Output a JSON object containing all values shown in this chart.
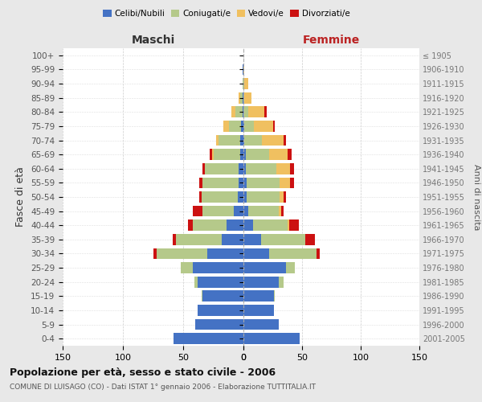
{
  "age_groups": [
    "0-4",
    "5-9",
    "10-14",
    "15-19",
    "20-24",
    "25-29",
    "30-34",
    "35-39",
    "40-44",
    "45-49",
    "50-54",
    "55-59",
    "60-64",
    "65-69",
    "70-74",
    "75-79",
    "80-84",
    "85-89",
    "90-94",
    "95-99",
    "100+"
  ],
  "birth_years": [
    "2001-2005",
    "1996-2000",
    "1991-1995",
    "1986-1990",
    "1981-1985",
    "1976-1980",
    "1971-1975",
    "1966-1970",
    "1961-1965",
    "1956-1960",
    "1951-1955",
    "1946-1950",
    "1941-1945",
    "1936-1940",
    "1931-1935",
    "1926-1930",
    "1921-1925",
    "1916-1920",
    "1911-1915",
    "1906-1910",
    "≤ 1905"
  ],
  "colors": {
    "celibi": "#4472c4",
    "coniugati": "#b5c98a",
    "vedovi": "#f0c060",
    "divorziati": "#cc1111"
  },
  "maschi": {
    "celibi": [
      58,
      40,
      38,
      34,
      38,
      42,
      30,
      18,
      14,
      8,
      5,
      4,
      4,
      3,
      3,
      2,
      1,
      1,
      0,
      1,
      0
    ],
    "coniugati": [
      0,
      0,
      0,
      1,
      3,
      10,
      42,
      38,
      28,
      26,
      30,
      30,
      28,
      22,
      18,
      10,
      6,
      2,
      1,
      0,
      0
    ],
    "vedovi": [
      0,
      0,
      0,
      0,
      0,
      0,
      0,
      0,
      0,
      0,
      0,
      0,
      0,
      1,
      2,
      5,
      3,
      1,
      0,
      0,
      0
    ],
    "divorziati": [
      0,
      0,
      0,
      0,
      0,
      0,
      3,
      3,
      4,
      8,
      2,
      3,
      2,
      2,
      0,
      0,
      0,
      0,
      0,
      0,
      0
    ]
  },
  "femmine": {
    "celibi": [
      48,
      30,
      26,
      26,
      30,
      36,
      22,
      15,
      8,
      4,
      3,
      3,
      2,
      2,
      1,
      1,
      0,
      0,
      0,
      0,
      0
    ],
    "coniugati": [
      0,
      0,
      0,
      1,
      4,
      8,
      40,
      38,
      30,
      26,
      28,
      28,
      26,
      20,
      15,
      8,
      4,
      1,
      1,
      0,
      0
    ],
    "vedovi": [
      0,
      0,
      0,
      0,
      0,
      0,
      0,
      0,
      1,
      2,
      3,
      9,
      12,
      16,
      18,
      16,
      14,
      6,
      3,
      1,
      0
    ],
    "divorziati": [
      0,
      0,
      0,
      0,
      0,
      0,
      3,
      8,
      8,
      2,
      2,
      3,
      3,
      3,
      2,
      2,
      2,
      0,
      0,
      0,
      0
    ]
  },
  "title": "Popolazione per età, sesso e stato civile - 2006",
  "subtitle": "COMUNE DI LUISAGO (CO) - Dati ISTAT 1° gennaio 2006 - Elaborazione TUTTITALIA.IT",
  "maschi_label": "Maschi",
  "femmine_label": "Femmine",
  "ylabel_left": "Fasce di età",
  "ylabel_right": "Anni di nascita",
  "xlim": 150,
  "bg_outer": "#e8e8e8",
  "bg_inner": "#ffffff"
}
